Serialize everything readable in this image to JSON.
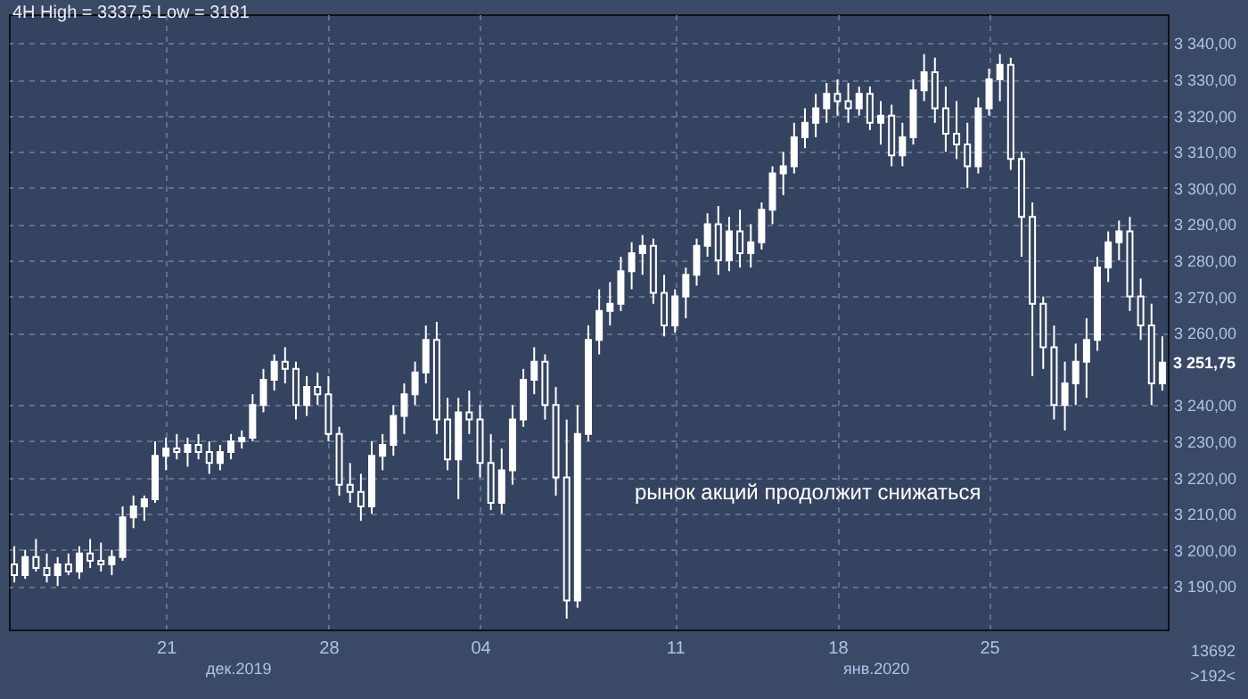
{
  "chart_data": {
    "type": "candlestick",
    "title": "4H High = 3337,5 Low = 3181",
    "categories": [
      null,
      null,
      null,
      null,
      null,
      null,
      null,
      null,
      null,
      null,
      null,
      null,
      null,
      null,
      "21",
      null,
      null,
      null,
      null,
      null,
      null,
      null,
      null,
      null,
      null,
      null,
      null,
      null,
      null,
      "28",
      null,
      null,
      null,
      null,
      null,
      null,
      null,
      null,
      null,
      null,
      null,
      null,
      null,
      "04",
      null,
      null,
      null,
      null,
      null,
      null,
      null,
      null,
      null,
      null,
      null,
      null,
      null,
      null,
      null,
      null,
      null,
      "11",
      null,
      null,
      null,
      null,
      null,
      null,
      null,
      null,
      null,
      null,
      null,
      null,
      null,
      null,
      "18",
      null,
      null,
      null,
      null,
      null,
      null,
      null,
      null,
      null,
      null,
      null,
      null,
      null,
      "25",
      null,
      null,
      null,
      null,
      null,
      null,
      null,
      null,
      null,
      null,
      null,
      null,
      null,
      null,
      null,
      null
    ],
    "ohlc": [
      [
        3196,
        3201,
        3191,
        3193
      ],
      [
        3193,
        3200,
        3192,
        3198
      ],
      [
        3198,
        3203,
        3194,
        3195
      ],
      [
        3195,
        3199,
        3191,
        3193
      ],
      [
        3193,
        3198,
        3190,
        3196
      ],
      [
        3196,
        3199,
        3193,
        3194
      ],
      [
        3194,
        3201,
        3192,
        3199
      ],
      [
        3199,
        3203,
        3195,
        3197
      ],
      [
        3197,
        3202,
        3194,
        3196
      ],
      [
        3196,
        3200,
        3193,
        3198
      ],
      [
        3198,
        3212,
        3197,
        3209
      ],
      [
        3209,
        3215,
        3206,
        3212
      ],
      [
        3212,
        3215,
        3208,
        3214
      ],
      [
        3214,
        3230,
        3213,
        3226
      ],
      [
        3226,
        3231,
        3222,
        3228
      ],
      [
        3228,
        3232,
        3225,
        3227
      ],
      [
        3227,
        3231,
        3223,
        3229
      ],
      [
        3229,
        3232,
        3225,
        3227
      ],
      [
        3227,
        3230,
        3221,
        3224
      ],
      [
        3224,
        3229,
        3222,
        3227
      ],
      [
        3227,
        3232,
        3225,
        3230
      ],
      [
        3230,
        3233,
        3228,
        3231
      ],
      [
        3231,
        3243,
        3230,
        3240
      ],
      [
        3240,
        3250,
        3238,
        3247
      ],
      [
        3247,
        3254,
        3244,
        3252
      ],
      [
        3252,
        3256,
        3246,
        3250
      ],
      [
        3250,
        3252,
        3236,
        3240
      ],
      [
        3240,
        3248,
        3237,
        3245
      ],
      [
        3245,
        3249,
        3240,
        3243
      ],
      [
        3243,
        3248,
        3230,
        3232
      ],
      [
        3232,
        3234,
        3215,
        3218
      ],
      [
        3218,
        3224,
        3213,
        3216
      ],
      [
        3216,
        3221,
        3208,
        3212
      ],
      [
        3212,
        3230,
        3210,
        3226
      ],
      [
        3226,
        3232,
        3222,
        3229
      ],
      [
        3229,
        3240,
        3226,
        3237
      ],
      [
        3237,
        3246,
        3232,
        3243
      ],
      [
        3243,
        3252,
        3240,
        3249
      ],
      [
        3249,
        3262,
        3246,
        3258
      ],
      [
        3258,
        3263,
        3232,
        3236
      ],
      [
        3236,
        3242,
        3222,
        3225
      ],
      [
        3225,
        3242,
        3214,
        3238
      ],
      [
        3238,
        3244,
        3232,
        3236
      ],
      [
        3236,
        3240,
        3220,
        3224
      ],
      [
        3224,
        3232,
        3211,
        3213
      ],
      [
        3213,
        3228,
        3210,
        3222
      ],
      [
        3222,
        3240,
        3218,
        3236
      ],
      [
        3236,
        3250,
        3234,
        3247
      ],
      [
        3247,
        3256,
        3243,
        3252
      ],
      [
        3252,
        3254,
        3236,
        3240
      ],
      [
        3240,
        3245,
        3215,
        3220
      ],
      [
        3220,
        3236,
        3181,
        3186
      ],
      [
        3186,
        3240,
        3184,
        3232
      ],
      [
        3232,
        3262,
        3230,
        3258
      ],
      [
        3258,
        3272,
        3254,
        3266
      ],
      [
        3266,
        3274,
        3262,
        3268
      ],
      [
        3268,
        3281,
        3266,
        3277
      ],
      [
        3277,
        3285,
        3272,
        3282
      ],
      [
        3282,
        3287,
        3276,
        3284
      ],
      [
        3284,
        3286,
        3268,
        3271
      ],
      [
        3271,
        3276,
        3259,
        3262
      ],
      [
        3262,
        3272,
        3260,
        3270
      ],
      [
        3270,
        3278,
        3264,
        3276
      ],
      [
        3276,
        3286,
        3273,
        3284
      ],
      [
        3284,
        3293,
        3281,
        3290
      ],
      [
        3290,
        3295,
        3276,
        3280
      ],
      [
        3280,
        3292,
        3277,
        3288
      ],
      [
        3288,
        3294,
        3278,
        3282
      ],
      [
        3282,
        3290,
        3278,
        3285
      ],
      [
        3285,
        3296,
        3283,
        3294
      ],
      [
        3294,
        3306,
        3290,
        3304
      ],
      [
        3304,
        3310,
        3298,
        3306
      ],
      [
        3306,
        3318,
        3304,
        3314
      ],
      [
        3314,
        3322,
        3311,
        3318
      ],
      [
        3318,
        3326,
        3314,
        3322
      ],
      [
        3322,
        3329,
        3318,
        3326
      ],
      [
        3326,
        3330,
        3320,
        3324
      ],
      [
        3324,
        3329,
        3318,
        3322
      ],
      [
        3322,
        3328,
        3320,
        3326
      ],
      [
        3326,
        3328,
        3316,
        3318
      ],
      [
        3318,
        3324,
        3312,
        3320
      ],
      [
        3320,
        3323,
        3306,
        3309
      ],
      [
        3309,
        3318,
        3306,
        3314
      ],
      [
        3314,
        3330,
        3312,
        3327
      ],
      [
        3327,
        3337,
        3324,
        3332
      ],
      [
        3332,
        3336,
        3318,
        3322
      ],
      [
        3322,
        3328,
        3310,
        3315
      ],
      [
        3315,
        3324,
        3308,
        3312
      ],
      [
        3312,
        3318,
        3300,
        3306
      ],
      [
        3306,
        3325,
        3304,
        3322
      ],
      [
        3322,
        3333,
        3320,
        3330
      ],
      [
        3330,
        3337,
        3324,
        3334
      ],
      [
        3334,
        3336,
        3305,
        3308
      ],
      [
        3308,
        3310,
        3281,
        3292
      ],
      [
        3292,
        3296,
        3248,
        3268
      ],
      [
        3268,
        3270,
        3250,
        3256
      ],
      [
        3256,
        3262,
        3236,
        3240
      ],
      [
        3240,
        3252,
        3233,
        3246
      ],
      [
        3246,
        3257,
        3240,
        3252
      ],
      [
        3252,
        3264,
        3242,
        3258
      ],
      [
        3258,
        3281,
        3255,
        3278
      ],
      [
        3278,
        3288,
        3274,
        3285
      ],
      [
        3285,
        3291,
        3280,
        3288
      ],
      [
        3288,
        3292,
        3266,
        3270
      ],
      [
        3270,
        3275,
        3258,
        3262
      ],
      [
        3262,
        3268,
        3240,
        3246
      ],
      [
        3246,
        3259,
        3244,
        3251.75
      ]
    ],
    "ylim": [
      3178,
      3348
    ],
    "yticks": [
      {
        "value": 3190,
        "label": "3 190,00"
      },
      {
        "value": 3200,
        "label": "3 200,00"
      },
      {
        "value": 3210,
        "label": "3 210,00"
      },
      {
        "value": 3220,
        "label": "3 220,00"
      },
      {
        "value": 3230,
        "label": "3 230,00"
      },
      {
        "value": 3240,
        "label": "3 240,00"
      },
      {
        "value": 3260,
        "label": "3 260,00"
      },
      {
        "value": 3270,
        "label": "3 270,00"
      },
      {
        "value": 3280,
        "label": "3 280,00"
      },
      {
        "value": 3290,
        "label": "3 290,00"
      },
      {
        "value": 3300,
        "label": "3 300,00"
      },
      {
        "value": 3310,
        "label": "3 310,00"
      },
      {
        "value": 3320,
        "label": "3 320,00"
      },
      {
        "value": 3330,
        "label": "3 330,00"
      },
      {
        "value": 3340,
        "label": "3 340,00"
      }
    ],
    "grid": true,
    "annotations": [
      "дек.2019",
      "янв.2020",
      "рынок акций продолжит снижаться",
      "13692",
      ">192<",
      "3 251,75"
    ]
  }
}
